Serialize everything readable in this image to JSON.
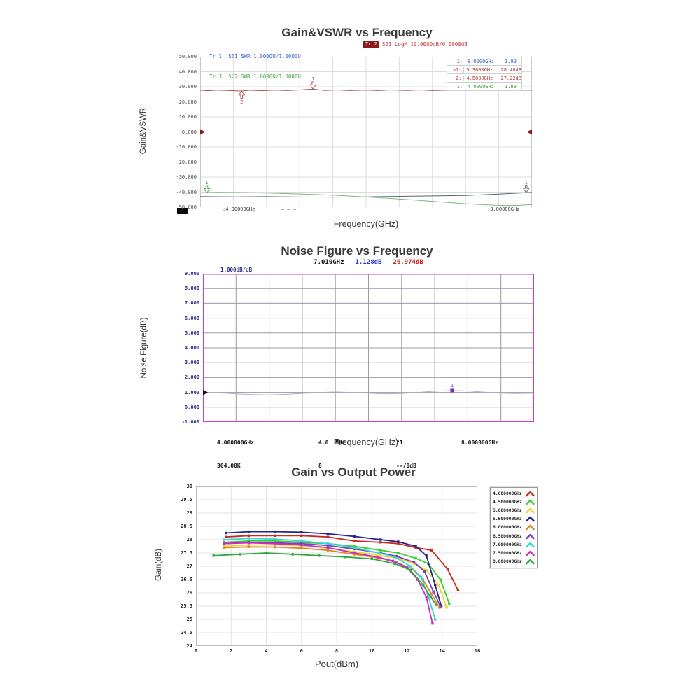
{
  "chart_data": [
    {
      "id": "gain_vswr",
      "type": "line",
      "title": "Gain&VSWR vs Frequency",
      "xlabel": "Frequency(GHz)",
      "ylabel": "Gain&VSWR",
      "xlim": [
        4,
        8
      ],
      "ylim": [
        -50,
        50
      ],
      "xdivs": 10,
      "grid_color": "#dcdcdc",
      "border_color": "#c9c9c9",
      "yticks": [
        "50.000",
        "40.000",
        "30.000",
        "20.000",
        "10.000",
        "0.000",
        "-10.000",
        "-20.000",
        "-30.000",
        "-40.000",
        "-50.000"
      ],
      "header": {
        "tr1": "Tr 1  S11 SWR 1.0000U/1.0000U",
        "tr1_color": "#3a5fc8",
        "tr3": "Tr 3  S22 SWR 1.0000U/1.0000U",
        "tr3_color": "#3aa53a",
        "tr2_badge": "Tr 2",
        "tr2_badge_bg": "#8b1a1a",
        "tr2_badge_color": "#f0c0c0",
        "tr2": "S21 LogM 10.0000dB/0.0000dB",
        "tr2_color": "#c03a3a"
      },
      "marker_table": [
        {
          "label": "1:",
          "freq": "8.0000GHz",
          "value": "1.99",
          "color": "#3a5fc8"
        },
        {
          "label": ">1:",
          "freq": "5.3600GHz",
          "value": "28.48dB",
          "color": "#b03a3a"
        },
        {
          "label": "2:",
          "freq": "4.5000GHz",
          "value": "27.22dB",
          "color": "#b03a3a"
        },
        {
          "label": "1:",
          "freq": "4.0000GHz",
          "value": "1.89",
          "color": "#3aa53a"
        }
      ],
      "series": [
        {
          "name": "S21",
          "color": "#a85252",
          "width": 1,
          "points": [
            [
              4,
              27.7
            ],
            [
              4.1,
              27.4
            ],
            [
              4.2,
              27.8
            ],
            [
              4.35,
              27.5
            ],
            [
              4.5,
              27.22
            ],
            [
              4.6,
              27.7
            ],
            [
              4.75,
              27.4
            ],
            [
              4.9,
              27.8
            ],
            [
              5.05,
              27.5
            ],
            [
              5.2,
              27.9
            ],
            [
              5.36,
              28.48
            ],
            [
              5.5,
              27.6
            ],
            [
              5.65,
              27.9
            ],
            [
              5.8,
              27.5
            ],
            [
              6,
              27.8
            ],
            [
              6.15,
              27.5
            ],
            [
              6.3,
              27.9
            ],
            [
              6.5,
              27.6
            ],
            [
              6.65,
              27.9
            ],
            [
              6.8,
              27.5
            ],
            [
              7,
              27.8
            ],
            [
              7.15,
              27.5
            ],
            [
              7.3,
              27.9
            ],
            [
              7.45,
              27.6
            ],
            [
              7.6,
              27.8
            ],
            [
              7.75,
              27.5
            ],
            [
              7.9,
              27.8
            ],
            [
              8,
              27.7
            ]
          ]
        },
        {
          "name": "S11",
          "color": "#5a6570",
          "width": 1,
          "points": [
            [
              4,
              -42.9
            ],
            [
              4.4,
              -43.1
            ],
            [
              4.8,
              -43.0
            ],
            [
              5.2,
              -43.2
            ],
            [
              5.6,
              -43.3
            ],
            [
              6,
              -43.1
            ],
            [
              6.4,
              -42.8
            ],
            [
              6.8,
              -42.5
            ],
            [
              7.2,
              -42.2
            ],
            [
              7.6,
              -41.3
            ],
            [
              8,
              -40.2
            ]
          ]
        },
        {
          "name": "S22",
          "color": "#7cb87c",
          "width": 1,
          "points": [
            [
              4,
              -40.5
            ],
            [
              4.2,
              -40.1
            ],
            [
              4.5,
              -40.3
            ],
            [
              4.8,
              -40.6
            ],
            [
              5.1,
              -41.0
            ],
            [
              5.4,
              -41.6
            ],
            [
              5.7,
              -42.3
            ],
            [
              6,
              -43.2
            ],
            [
              6.3,
              -44.2
            ],
            [
              6.6,
              -45.3
            ],
            [
              6.9,
              -46.5
            ],
            [
              7.2,
              -47.7
            ],
            [
              7.5,
              -48.6
            ],
            [
              7.7,
              -49.0
            ],
            [
              7.85,
              -48.8
            ],
            [
              8,
              -48.3
            ]
          ]
        }
      ],
      "markers": [
        {
          "shape": "arrow-down",
          "x": 5.36,
          "y": 28.48,
          "label": "1",
          "color": "#a85252"
        },
        {
          "shape": "arrow-up",
          "x": 4.5,
          "y": 27.22,
          "label": "2",
          "color": "#a85252"
        },
        {
          "shape": "arrow-down",
          "x": 7.93,
          "y": -40.3,
          "label": "1",
          "color": "#5a6570"
        },
        {
          "shape": "arrow-down",
          "x": 4.08,
          "y": -40.5,
          "label": "1",
          "color": "#3aa53a"
        },
        {
          "shape": "tri-right",
          "x": 4,
          "y": 0,
          "color": "#8b1a1a"
        },
        {
          "shape": "tri-left",
          "x": 8,
          "y": 0,
          "color": "#8b1a1a"
        }
      ],
      "footer": {
        "chan": "1",
        "start": ":4.00000GHz",
        "dashes": "— — —",
        "stop": ":8.00000GHz"
      }
    },
    {
      "id": "noise_figure",
      "type": "line",
      "title": "Noise Figure vs Frequency",
      "xlabel": "Frequency(GHz)",
      "ylabel": "Noise Figure(dB)",
      "xlim": [
        4,
        8
      ],
      "ylim": [
        -1,
        9
      ],
      "xdivs": 10,
      "grid_color": "#9a9aa5",
      "border_color": "#cc3fcc",
      "border_width": 2,
      "yticks": [
        "9.000",
        "8.000",
        "7.000",
        "6.000",
        "5.000",
        "4.000",
        "3.000",
        "2.000",
        "1.000",
        "0.000",
        "-1.000"
      ],
      "readout": {
        "freq": "7.010GHz",
        "freq_color": "#111111",
        "nf": "1.128dB",
        "nf_color": "#2a3fcc",
        "gain": "26.974dB",
        "gain_color": "#cc2222"
      },
      "scale_label": "1.000dB/dB",
      "series": [
        {
          "name": "NF",
          "color": "#aeaec6",
          "width": 1,
          "points": [
            [
              4,
              1.0
            ],
            [
              4.2,
              0.97
            ],
            [
              4.4,
              0.9
            ],
            [
              4.6,
              0.85
            ],
            [
              4.8,
              0.83
            ],
            [
              5,
              0.87
            ],
            [
              5.2,
              0.93
            ],
            [
              5.4,
              1.0
            ],
            [
              5.6,
              1.03
            ],
            [
              5.8,
              1.0
            ],
            [
              6,
              0.95
            ],
            [
              6.2,
              0.9
            ],
            [
              6.4,
              0.93
            ],
            [
              6.6,
              1.0
            ],
            [
              6.8,
              1.08
            ],
            [
              7.01,
              1.128
            ],
            [
              7.2,
              1.1
            ],
            [
              7.4,
              1.02
            ],
            [
              7.6,
              0.95
            ],
            [
              7.8,
              0.92
            ],
            [
              8,
              0.95
            ]
          ]
        }
      ],
      "markers": [
        {
          "shape": "square",
          "x": 7.01,
          "y": 1.128,
          "label": "1",
          "color": "#7a2fbf"
        },
        {
          "shape": "tri-right",
          "x": 4,
          "y": 1.0,
          "color": "#111111"
        }
      ],
      "annotations": {
        "a1_top": "4.000000GHz",
        "a1_bot": "304.00K",
        "a2_top": "4.0  MHz",
        "a2_bot": "8",
        "a3_top": "21",
        "a3_bot": "--/0dB",
        "a4_top": "8.000000GHz"
      }
    },
    {
      "id": "gain_pout",
      "type": "line",
      "title": "Gain vs Output Power",
      "xlabel": "Pout(dBm)",
      "ylabel": "Gain(dB)",
      "xlim": [
        0,
        16
      ],
      "ylim": [
        24,
        30
      ],
      "grid_color": "#e3e3e3",
      "border_color": "#bbbbbb",
      "point_markers": true,
      "yticks": [
        "30",
        "29.5",
        "29",
        "28.5",
        "28",
        "27.5",
        "27",
        "26.5",
        "26",
        "25.5",
        "25",
        "24.5",
        "24"
      ],
      "xticks": [
        "0",
        "2",
        "4",
        "6",
        "8",
        "10",
        "12",
        "14",
        "16"
      ],
      "series": [
        {
          "name": "4.000000GHz",
          "color": "#cc2a1f",
          "width": 1.8,
          "points": [
            [
              1.7,
              28.1
            ],
            [
              3,
              28.15
            ],
            [
              4.5,
              28.15
            ],
            [
              6,
              28.15
            ],
            [
              7.5,
              28.1
            ],
            [
              9,
              27.95
            ],
            [
              10.5,
              27.9
            ],
            [
              11.5,
              27.85
            ],
            [
              12.5,
              27.7
            ],
            [
              13.4,
              27.6
            ],
            [
              14.3,
              26.9
            ],
            [
              14.9,
              26.1
            ]
          ]
        },
        {
          "name": "4.500000GHz",
          "color": "#3ecc33",
          "width": 1.8,
          "points": [
            [
              1.6,
              27.9
            ],
            [
              3,
              27.95
            ],
            [
              4.5,
              27.95
            ],
            [
              6,
              27.9
            ],
            [
              7.5,
              27.85
            ],
            [
              9,
              27.75
            ],
            [
              10.5,
              27.6
            ],
            [
              11.5,
              27.5
            ],
            [
              12.5,
              27.3
            ],
            [
              13.2,
              27.1
            ],
            [
              13.9,
              26.5
            ],
            [
              14.4,
              25.6
            ]
          ]
        },
        {
          "name": "5.000000GHz",
          "color": "#ead830",
          "width": 1.8,
          "points": [
            [
              1.6,
              27.75
            ],
            [
              3,
              27.8
            ],
            [
              4.5,
              27.8
            ],
            [
              6,
              27.78
            ],
            [
              7.5,
              27.68
            ],
            [
              9,
              27.55
            ],
            [
              10.5,
              27.4
            ],
            [
              11.5,
              27.3
            ],
            [
              12.4,
              27.1
            ],
            [
              13.1,
              26.85
            ],
            [
              13.8,
              26.3
            ],
            [
              14.25,
              25.45
            ]
          ]
        },
        {
          "name": "5.500000GHz",
          "color": "#232388",
          "width": 1.8,
          "points": [
            [
              1.7,
              28.25
            ],
            [
              3,
              28.3
            ],
            [
              4.5,
              28.3
            ],
            [
              6,
              28.28
            ],
            [
              7.5,
              28.22
            ],
            [
              9,
              28.12
            ],
            [
              10.5,
              28.0
            ],
            [
              11.5,
              27.92
            ],
            [
              12.5,
              27.75
            ],
            [
              13.1,
              27.4
            ],
            [
              13.6,
              26.3
            ],
            [
              13.95,
              25.5
            ]
          ]
        },
        {
          "name": "6.000000GHz",
          "color": "#dd8822",
          "width": 1.8,
          "points": [
            [
              1.6,
              27.7
            ],
            [
              3,
              27.73
            ],
            [
              4.5,
              27.72
            ],
            [
              6,
              27.68
            ],
            [
              7.5,
              27.6
            ],
            [
              9,
              27.45
            ],
            [
              10.5,
              27.3
            ],
            [
              11.4,
              27.15
            ],
            [
              12.3,
              26.9
            ],
            [
              12.9,
              26.5
            ],
            [
              13.4,
              25.95
            ],
            [
              13.85,
              25.45
            ]
          ]
        },
        {
          "name": "6.500000GHz",
          "color": "#7a3fbb",
          "width": 1.8,
          "points": [
            [
              1.6,
              27.85
            ],
            [
              3,
              27.9
            ],
            [
              4.5,
              27.88
            ],
            [
              6,
              27.85
            ],
            [
              7.5,
              27.78
            ],
            [
              9,
              27.65
            ],
            [
              10.5,
              27.5
            ],
            [
              11.4,
              27.38
            ],
            [
              12.4,
              27.15
            ],
            [
              13,
              26.8
            ],
            [
              13.5,
              26.05
            ],
            [
              13.9,
              25.5
            ]
          ]
        },
        {
          "name": "7.000000GHz",
          "color": "#35d8d8",
          "width": 1.8,
          "points": [
            [
              1.6,
              28.0
            ],
            [
              3,
              28.05
            ],
            [
              4.5,
              28.02
            ],
            [
              6,
              27.95
            ],
            [
              7.5,
              27.85
            ],
            [
              9,
              27.7
            ],
            [
              10.4,
              27.5
            ],
            [
              11.3,
              27.35
            ],
            [
              12.2,
              27.0
            ],
            [
              12.8,
              26.6
            ],
            [
              13.2,
              25.9
            ],
            [
              13.6,
              25.0
            ]
          ]
        },
        {
          "name": "7.500000GHz",
          "color": "#cc28cc",
          "width": 1.8,
          "points": [
            [
              1.6,
              27.85
            ],
            [
              3,
              27.88
            ],
            [
              4.5,
              27.85
            ],
            [
              6,
              27.8
            ],
            [
              7.5,
              27.7
            ],
            [
              9,
              27.5
            ],
            [
              10.3,
              27.35
            ],
            [
              11.2,
              27.2
            ],
            [
              12,
              26.95
            ],
            [
              12.6,
              26.5
            ],
            [
              13.1,
              25.85
            ],
            [
              13.45,
              24.85
            ]
          ]
        },
        {
          "name": "8.000000GHz",
          "color": "#2fa544",
          "width": 1.8,
          "points": [
            [
              1,
              27.4
            ],
            [
              2.5,
              27.45
            ],
            [
              4,
              27.5
            ],
            [
              5.5,
              27.45
            ],
            [
              7,
              27.4
            ],
            [
              8.5,
              27.35
            ],
            [
              10,
              27.28
            ],
            [
              11.3,
              27.1
            ],
            [
              12.2,
              26.85
            ],
            [
              12.9,
              26.3
            ],
            [
              13.35,
              25.85
            ],
            [
              13.65,
              25.55
            ]
          ]
        }
      ]
    }
  ]
}
